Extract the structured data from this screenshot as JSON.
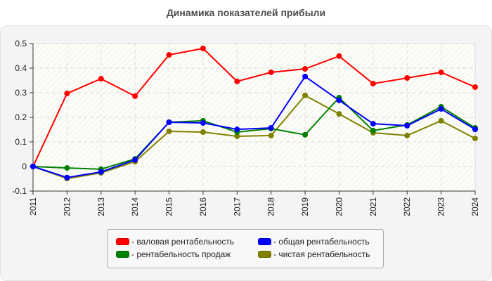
{
  "title": "Динамика показателей прибыли",
  "legend": {
    "items": [
      {
        "label": "- валовая рентабельность",
        "color": "#ff0000"
      },
      {
        "label": "- общая рентабельность",
        "color": "#0000ff"
      },
      {
        "label": "- рентабельность продаж",
        "color": "#008000"
      },
      {
        "label": "- чистая рентабельность",
        "color": "#808000"
      }
    ]
  },
  "chart_data": {
    "type": "line",
    "title": "Динамика показателей прибыли",
    "xlabel": "",
    "ylabel": "",
    "categories": [
      "2011",
      "2012",
      "2013",
      "2014",
      "2015",
      "2016",
      "2017",
      "2018",
      "2019",
      "2020",
      "2021",
      "2022",
      "2023",
      "2024"
    ],
    "ylim": [
      -0.1,
      0.5
    ],
    "yticks": [
      "0.5",
      "0.4",
      "0.3",
      "0.2",
      "0.1",
      "0",
      "-0.1"
    ],
    "grid": true,
    "legend_position": "bottom",
    "series": [
      {
        "name": "валовая рентабельность",
        "color": "#ff0000",
        "values": [
          0,
          0.297,
          0.357,
          0.286,
          0.454,
          0.48,
          0.346,
          0.383,
          0.397,
          0.449,
          0.337,
          0.36,
          0.383,
          0.323
        ]
      },
      {
        "name": "общая рентабельность",
        "color": "#0000ff",
        "values": [
          0,
          -0.045,
          -0.022,
          0.027,
          0.18,
          0.177,
          0.151,
          0.157,
          0.366,
          0.269,
          0.174,
          0.166,
          0.234,
          0.151
        ]
      },
      {
        "name": "рентабельность продаж",
        "color": "#008000",
        "values": [
          0,
          -0.006,
          -0.011,
          0.031,
          0.18,
          0.186,
          0.14,
          0.154,
          0.129,
          0.28,
          0.146,
          0.169,
          0.243,
          0.157
        ]
      },
      {
        "name": "чистая рентабельность",
        "color": "#808000",
        "values": [
          0,
          -0.049,
          -0.026,
          0.02,
          0.143,
          0.14,
          0.123,
          0.126,
          0.289,
          0.214,
          0.137,
          0.126,
          0.186,
          0.114
        ]
      }
    ]
  }
}
